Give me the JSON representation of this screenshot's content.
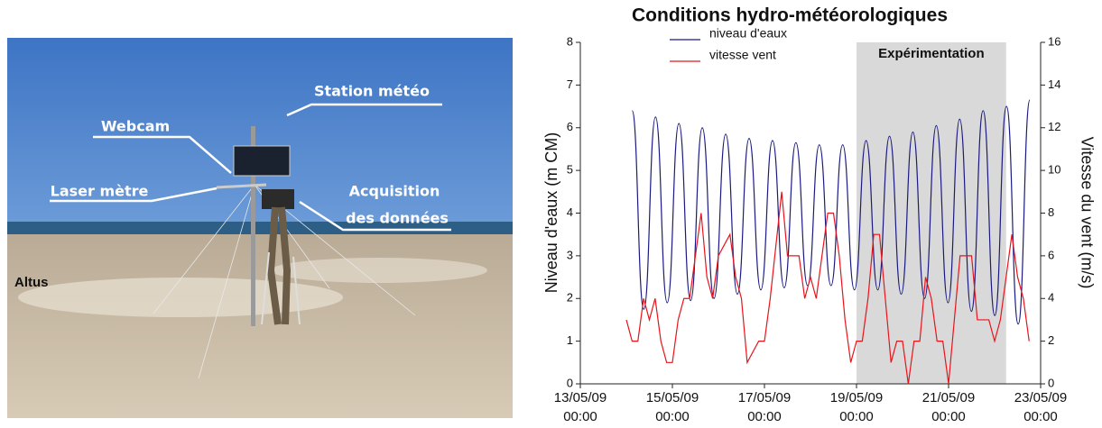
{
  "photo": {
    "labels": [
      "Station météo",
      "Webcam",
      "Laser mètre",
      "Acquisition",
      "des données",
      "Altus"
    ]
  },
  "chart_data": {
    "type": "line",
    "title": "Conditions hydro-météorologiques",
    "y_label": "Niveau d'eaux (m CM)",
    "y2_label": "Vitesse du vent (m/s)",
    "shade": {
      "label": "Expérimentation",
      "from": "19/05/09 00:00",
      "to": "22/05/09 06:00",
      "color": "#d9d9d9"
    },
    "xlim": [
      "13/05/09 00:00",
      "23/05/09 00:00"
    ],
    "xticks": [
      {
        "value": "13/05/09 00:00",
        "label": [
          "13/05/09",
          "00:00"
        ]
      },
      {
        "value": "15/05/09 00:00",
        "label": [
          "15/05/09",
          "00:00"
        ]
      },
      {
        "value": "17/05/09 00:00",
        "label": [
          "17/05/09",
          "00:00"
        ]
      },
      {
        "value": "19/05/09 00:00",
        "label": [
          "19/05/09",
          "00:00"
        ]
      },
      {
        "value": "21/05/09 00:00",
        "label": [
          "21/05/09",
          "00:00"
        ]
      },
      {
        "value": "23/05/09 00:00",
        "label": [
          "23/05/09",
          "00:00"
        ]
      }
    ],
    "ylim": [
      0,
      8
    ],
    "yticks": [
      0,
      1,
      2,
      3,
      4,
      5,
      6,
      7,
      8
    ],
    "y2lim": [
      0,
      16
    ],
    "y2ticks": [
      0,
      2,
      4,
      6,
      8,
      10,
      12,
      14,
      16
    ],
    "series": [
      {
        "name": "niveau d'eaux",
        "color": "#1a1a80",
        "smooth": true,
        "x": [
          "14/05/09 03:00",
          "14/05/09 09:06",
          "14/05/09 15:12",
          "14/05/09 21:18",
          "15/05/09 03:24",
          "15/05/09 09:30",
          "15/05/09 15:36",
          "15/05/09 21:42",
          "16/05/09 03:48",
          "16/05/09 09:54",
          "16/05/09 16:00",
          "16/05/09 22:06",
          "17/05/09 04:12",
          "17/05/09 10:18",
          "17/05/09 16:24",
          "17/05/09 22:30",
          "18/05/09 04:36",
          "18/05/09 10:42",
          "18/05/09 16:48",
          "18/05/09 22:54",
          "19/05/09 05:00",
          "19/05/09 11:06",
          "19/05/09 17:12",
          "19/05/09 23:18",
          "20/05/09 05:24",
          "20/05/09 11:30",
          "20/05/09 17:36",
          "20/05/09 23:42",
          "21/05/09 05:48",
          "21/05/09 11:54",
          "21/05/09 18:00",
          "22/05/09 00:06",
          "22/05/09 06:12",
          "22/05/09 12:18",
          "22/05/09 18:24"
        ],
        "values": [
          6.4,
          1.75,
          6.25,
          1.9,
          6.1,
          1.95,
          6.0,
          2.0,
          5.85,
          2.1,
          5.75,
          2.2,
          5.7,
          2.25,
          5.65,
          2.3,
          5.6,
          2.3,
          5.6,
          2.2,
          5.7,
          2.2,
          5.8,
          2.1,
          5.9,
          2.0,
          6.05,
          1.9,
          6.2,
          1.7,
          6.4,
          1.6,
          6.5,
          1.4,
          6.65
        ]
      },
      {
        "name": "vitesse vent",
        "color": "#e8141c",
        "axis": "y2",
        "smooth": false,
        "x": [
          "14/05/09 00:00",
          "14/05/09 03:00",
          "14/05/09 06:00",
          "14/05/09 09:00",
          "14/05/09 12:00",
          "14/05/09 15:00",
          "14/05/09 18:00",
          "14/05/09 21:00",
          "15/05/09 00:00",
          "15/05/09 03:00",
          "15/05/09 06:00",
          "15/05/09 09:00",
          "15/05/09 15:00",
          "15/05/09 18:00",
          "15/05/09 21:00",
          "16/05/09 00:00",
          "16/05/09 06:00",
          "16/05/09 09:00",
          "16/05/09 12:00",
          "16/05/09 15:00",
          "16/05/09 21:00",
          "17/05/09 00:00",
          "17/05/09 03:00",
          "17/05/09 09:00",
          "17/05/09 12:00",
          "17/05/09 18:00",
          "17/05/09 21:00",
          "18/05/09 00:00",
          "18/05/09 03:00",
          "18/05/09 09:00",
          "18/05/09 12:00",
          "18/05/09 15:00",
          "18/05/09 18:00",
          "18/05/09 21:00",
          "19/05/09 00:00",
          "19/05/09 03:00",
          "19/05/09 06:00",
          "19/05/09 09:00",
          "19/05/09 12:00",
          "19/05/09 15:00",
          "19/05/09 18:00",
          "19/05/09 21:00",
          "20/05/09 00:00",
          "20/05/09 03:00",
          "20/05/09 06:00",
          "20/05/09 09:00",
          "20/05/09 12:00",
          "20/05/09 15:00",
          "20/05/09 18:00",
          "20/05/09 21:00",
          "21/05/09 00:00",
          "21/05/09 03:00",
          "21/05/09 06:00",
          "21/05/09 12:00",
          "21/05/09 15:00",
          "21/05/09 18:00",
          "21/05/09 21:00",
          "22/05/09 00:00",
          "22/05/09 03:00",
          "22/05/09 09:00",
          "22/05/09 12:00",
          "22/05/09 15:00",
          "22/05/09 18:00"
        ],
        "values": [
          3,
          2,
          2,
          4,
          3,
          4,
          2,
          1,
          1,
          3,
          4,
          4,
          8,
          5,
          4,
          6,
          7,
          5,
          4,
          1,
          2,
          2,
          4,
          9,
          6,
          6,
          4,
          5,
          4,
          8,
          8,
          6,
          3,
          1,
          2,
          2,
          4,
          7,
          7,
          4,
          1,
          2,
          2,
          0,
          2,
          2,
          5,
          4,
          2,
          2,
          0,
          3,
          6,
          6,
          3,
          3,
          3,
          2,
          3,
          7,
          5,
          4,
          2
        ]
      }
    ]
  }
}
